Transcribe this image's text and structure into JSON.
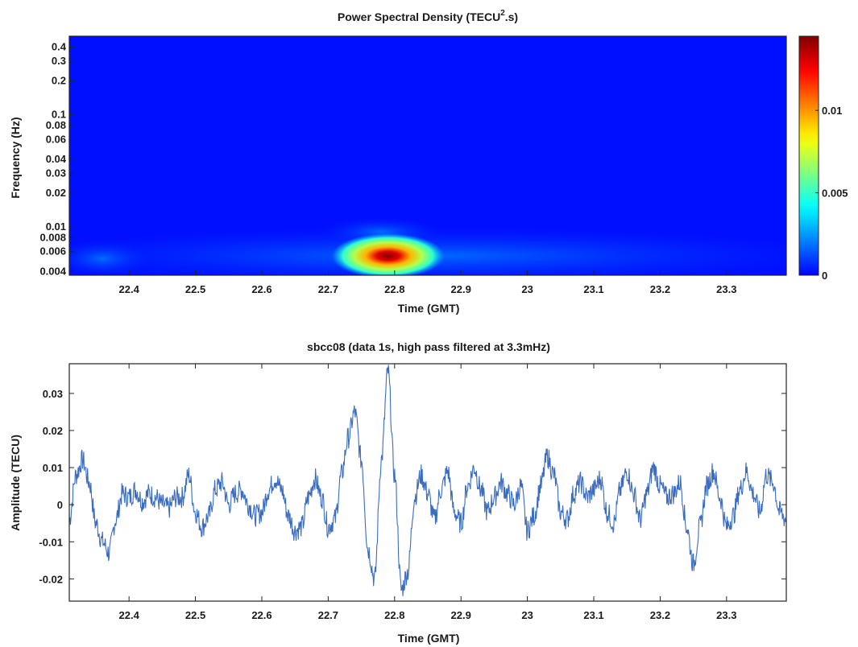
{
  "chart_data": [
    {
      "type": "heatmap",
      "title_prefix": "Power Spectral Density (TECU",
      "title_sup": "2",
      "title_suffix": ".s)",
      "xlabel": "Time (GMT)",
      "ylabel": "Frequency (Hz)",
      "xlim": [
        22.31,
        23.39
      ],
      "ylim": [
        0.0037,
        0.5
      ],
      "y_scale": "log",
      "x_ticks": [
        "22.4",
        "22.5",
        "22.6",
        "22.7",
        "22.8",
        "22.9",
        "23",
        "23.1",
        "23.2",
        "23.3"
      ],
      "y_ticks": [
        "0.004",
        "0.006",
        "0.008",
        "0.01",
        "0.02",
        "0.03",
        "0.04",
        "0.06",
        "0.08",
        "0.1",
        "0.2",
        "0.3",
        "0.4"
      ],
      "colorbar": {
        "ticks": [
          "0",
          "0.005",
          "0.01"
        ],
        "range": [
          0,
          0.0145
        ],
        "colormap": "jet"
      },
      "peak": {
        "time": 22.79,
        "frequency": 0.0055,
        "value": 0.0145
      }
    },
    {
      "type": "line",
      "title": "sbcc08 (data 1s, high pass filtered at 3.3mHz)",
      "xlabel": "Time (GMT)",
      "ylabel": "Amplitude (TECU)",
      "xlim": [
        22.31,
        23.39
      ],
      "ylim": [
        -0.026,
        0.038
      ],
      "x_ticks": [
        "22.4",
        "22.5",
        "22.6",
        "22.7",
        "22.8",
        "22.9",
        "23",
        "23.1",
        "23.2",
        "23.3"
      ],
      "y_ticks": [
        "-0.02",
        "-0.01",
        "0",
        "0.01",
        "0.02",
        "0.03"
      ],
      "line_color": "#3a6cc0",
      "series": [
        {
          "x": [
            22.31,
            22.32,
            22.33,
            22.34,
            22.35,
            22.36,
            22.37,
            22.38,
            22.39,
            22.4,
            22.41,
            22.42,
            22.43,
            22.44,
            22.45,
            22.46,
            22.47,
            22.48,
            22.49,
            22.5,
            22.51,
            22.52,
            22.53,
            22.54,
            22.55,
            22.56,
            22.57,
            22.58,
            22.59,
            22.6,
            22.61,
            22.62,
            22.63,
            22.64,
            22.65,
            22.66,
            22.67,
            22.68,
            22.69,
            22.7,
            22.71,
            22.72,
            22.73,
            22.74,
            22.75,
            22.76,
            22.77,
            22.78,
            22.79,
            22.8,
            22.81,
            22.82,
            22.83,
            22.84,
            22.85,
            22.86,
            22.87,
            22.88,
            22.89,
            22.9,
            22.91,
            22.92,
            22.93,
            22.94,
            22.95,
            22.96,
            22.97,
            22.98,
            22.99,
            23.0,
            23.01,
            23.02,
            23.03,
            23.04,
            23.05,
            23.06,
            23.07,
            23.08,
            23.09,
            23.1,
            23.11,
            23.12,
            23.13,
            23.14,
            23.15,
            23.16,
            23.17,
            23.18,
            23.19,
            23.2,
            23.21,
            23.22,
            23.23,
            23.24,
            23.25,
            23.26,
            23.27,
            23.28,
            23.29,
            23.3,
            23.31,
            23.32,
            23.33,
            23.34,
            23.35,
            23.36,
            23.37,
            23.38,
            23.39
          ],
          "y": [
            -0.004,
            0.008,
            0.012,
            0.006,
            -0.005,
            -0.01,
            -0.013,
            -0.004,
            0.003,
            0.002,
            0.004,
            0.001,
            0.003,
            0.002,
            0.0,
            -0.001,
            0.002,
            0.002,
            0.008,
            -0.002,
            -0.006,
            -0.003,
            0.004,
            0.006,
            0.0,
            0.003,
            0.004,
            0.0,
            -0.003,
            -0.002,
            0.004,
            0.007,
            0.004,
            -0.003,
            -0.007,
            -0.006,
            0.002,
            0.007,
            0.002,
            -0.006,
            -0.004,
            0.008,
            0.018,
            0.025,
            0.012,
            -0.012,
            -0.02,
            0.012,
            0.036,
            0.008,
            -0.023,
            -0.018,
            0.002,
            0.008,
            0.003,
            -0.004,
            0.004,
            0.009,
            -0.002,
            -0.005,
            0.005,
            0.01,
            0.004,
            -0.002,
            0.002,
            0.006,
            0.003,
            0.0,
            0.005,
            -0.007,
            -0.003,
            0.005,
            0.013,
            0.008,
            -0.002,
            -0.004,
            0.003,
            0.006,
            0.002,
            0.004,
            0.007,
            -0.002,
            -0.005,
            0.004,
            0.009,
            0.003,
            -0.004,
            0.003,
            0.01,
            0.005,
            0.002,
            0.003,
            0.006,
            -0.006,
            -0.016,
            -0.006,
            0.005,
            0.009,
            0.002,
            -0.006,
            -0.003,
            0.004,
            0.009,
            0.003,
            -0.002,
            0.008,
            0.006,
            -0.002,
            -0.004
          ]
        }
      ]
    }
  ]
}
